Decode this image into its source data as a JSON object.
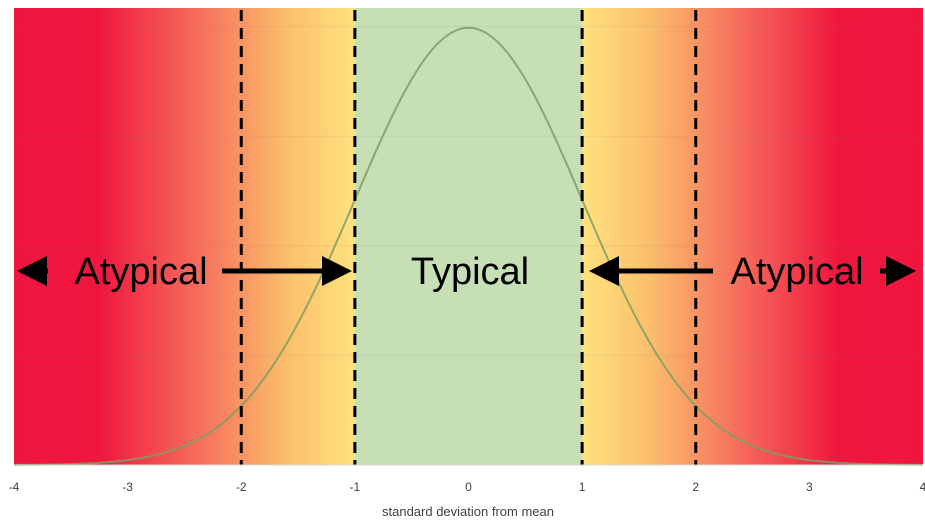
{
  "chart_data": {
    "type": "area",
    "title": "",
    "xlabel": "standard deviation from mean",
    "ylabel": "",
    "xlim": [
      -4,
      4
    ],
    "x_ticks": [
      "-4",
      "-3",
      "-2",
      "-1",
      "0",
      "1",
      "2",
      "3",
      "4"
    ],
    "y_ticks_shown": false,
    "grid": "horizontal",
    "series": [
      {
        "color": "#7e9f62",
        "curve": "standard normal density",
        "x": [
          -4,
          -3.5,
          -3,
          -2.5,
          -2,
          -1.5,
          -1,
          -0.5,
          0,
          0.5,
          1,
          1.5,
          2,
          2.5,
          3,
          3.5,
          4
        ],
        "y": [
          0.0001,
          0.0009,
          0.0044,
          0.0175,
          0.054,
          0.1295,
          0.242,
          0.3521,
          0.3989,
          0.3521,
          0.242,
          0.1295,
          0.054,
          0.0175,
          0.0044,
          0.0009,
          0.0001
        ]
      }
    ],
    "reference_lines": [
      {
        "x": -2,
        "style": "dashed",
        "color": "#000000"
      },
      {
        "x": -1,
        "style": "dashed",
        "color": "#000000"
      },
      {
        "x": 1,
        "style": "dashed",
        "color": "#000000"
      },
      {
        "x": 2,
        "style": "dashed",
        "color": "#000000"
      }
    ],
    "regions": [
      {
        "from": -1,
        "to": 1,
        "color": "#c6dfb5"
      },
      {
        "from": -4,
        "to": -1,
        "gradient": [
          "#f0153f",
          "#f7765e",
          "#fccb6e",
          "#ffe27e"
        ]
      },
      {
        "from": 1,
        "to": 4,
        "gradient": [
          "#ffe27e",
          "#fccb6e",
          "#f7765e",
          "#f0153f"
        ]
      }
    ],
    "annotations": [
      {
        "text": "Atypical",
        "arrows": "both",
        "span": [
          -4,
          -1
        ]
      },
      {
        "text": "Typical",
        "arrows": "none",
        "span": [
          -1,
          1
        ]
      },
      {
        "text": "Atypical",
        "arrows": "both",
        "span": [
          1,
          4
        ]
      }
    ]
  }
}
